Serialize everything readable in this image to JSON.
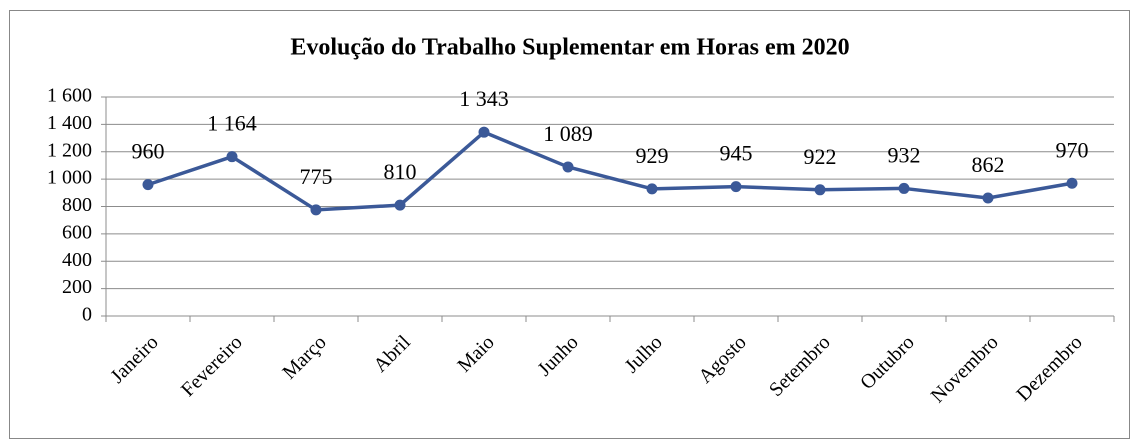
{
  "chart_data": {
    "type": "line",
    "title": "Evolução do Trabalho Suplementar em Horas em 2020",
    "categories": [
      "Janeiro",
      "Fevereiro",
      "Março",
      "Abril",
      "Maio",
      "Junho",
      "Julho",
      "Agosto",
      "Setembro",
      "Outubro",
      "Novembro",
      "Dezembro"
    ],
    "series": [
      {
        "name": "Horas",
        "color": "#3b5998",
        "values": [
          960,
          1164,
          775,
          810,
          1343,
          1089,
          929,
          945,
          922,
          932,
          862,
          970
        ],
        "value_labels": [
          "960",
          "1 164",
          "775",
          "810",
          "1 343",
          "1 089",
          "929",
          "945",
          "922",
          "932",
          "862",
          "970"
        ]
      }
    ],
    "ylim": [
      0,
      1600
    ],
    "yticks": [
      0,
      200,
      400,
      600,
      800,
      {
        "value": 1000,
        "label": "1 000"
      },
      {
        "value": 1200,
        "label": "1 200"
      },
      {
        "value": 1400,
        "label": "1 400"
      },
      {
        "value": 1600,
        "label": "1 600"
      }
    ],
    "grid": true
  }
}
